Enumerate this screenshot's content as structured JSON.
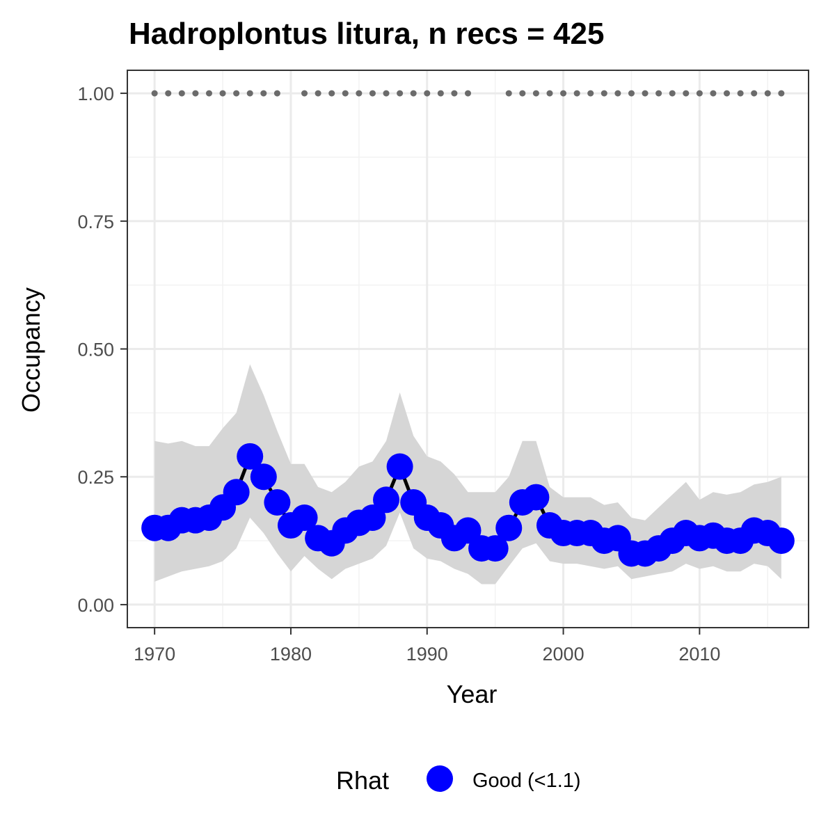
{
  "chart_data": {
    "type": "line",
    "title": "Hadroplontus litura, n recs = 425",
    "xlabel": "Year",
    "ylabel": "Occupancy",
    "xlim": [
      1968,
      2018
    ],
    "ylim": [
      -0.045,
      1.045
    ],
    "x_ticks": [
      1970,
      1980,
      1990,
      2000,
      2010
    ],
    "x_tick_labels": [
      "1970",
      "1980",
      "1990",
      "2000",
      "2010"
    ],
    "y_ticks": [
      0,
      0.25,
      0.5,
      0.75,
      1.0
    ],
    "y_tick_labels": [
      "0.00",
      "0.25",
      "0.50",
      "0.75",
      "1.00"
    ],
    "grid": true,
    "legend": {
      "title": "Rhat",
      "position": "bottom",
      "entries": [
        {
          "label": "Good (<1.1)",
          "color": "#0000ff"
        }
      ]
    },
    "colors": {
      "points": "#0000ff",
      "line": "#000000",
      "ribbon": "#d6d6d6",
      "record_dots": "#6b6b6b"
    },
    "series": [
      {
        "type": "line",
        "x": [
          1970,
          1971,
          1972,
          1973,
          1974,
          1975,
          1976,
          1977,
          1978,
          1979,
          1980,
          1981,
          1982,
          1983,
          1984,
          1985,
          1986,
          1987,
          1988,
          1989,
          1990,
          1991,
          1992,
          1993,
          1994,
          1995,
          1996,
          1997,
          1998,
          1999,
          2000,
          2001,
          2002,
          2003,
          2004,
          2005,
          2006,
          2007,
          2008,
          2009,
          2010,
          2011,
          2012,
          2013,
          2014,
          2015,
          2016
        ],
        "y": [
          0.15,
          0.15,
          0.165,
          0.165,
          0.17,
          0.19,
          0.22,
          0.29,
          0.25,
          0.2,
          0.155,
          0.17,
          0.13,
          0.12,
          0.145,
          0.16,
          0.17,
          0.205,
          0.27,
          0.2,
          0.17,
          0.155,
          0.13,
          0.145,
          0.11,
          0.11,
          0.15,
          0.2,
          0.21,
          0.155,
          0.14,
          0.14,
          0.14,
          0.125,
          0.13,
          0.1,
          0.1,
          0.11,
          0.125,
          0.14,
          0.13,
          0.135,
          0.125,
          0.125,
          0.145,
          0.14,
          0.125
        ],
        "lower": [
          0.045,
          0.055,
          0.065,
          0.07,
          0.075,
          0.085,
          0.11,
          0.17,
          0.14,
          0.1,
          0.065,
          0.095,
          0.07,
          0.05,
          0.07,
          0.08,
          0.09,
          0.115,
          0.18,
          0.11,
          0.09,
          0.085,
          0.07,
          0.06,
          0.04,
          0.04,
          0.075,
          0.11,
          0.12,
          0.085,
          0.08,
          0.08,
          0.075,
          0.07,
          0.075,
          0.05,
          0.055,
          0.06,
          0.065,
          0.08,
          0.07,
          0.075,
          0.065,
          0.065,
          0.08,
          0.075,
          0.05
        ],
        "upper": [
          0.32,
          0.315,
          0.32,
          0.31,
          0.31,
          0.345,
          0.375,
          0.47,
          0.41,
          0.34,
          0.275,
          0.275,
          0.23,
          0.22,
          0.24,
          0.27,
          0.28,
          0.32,
          0.415,
          0.33,
          0.29,
          0.28,
          0.255,
          0.22,
          0.22,
          0.22,
          0.25,
          0.32,
          0.32,
          0.23,
          0.21,
          0.21,
          0.21,
          0.195,
          0.2,
          0.17,
          0.165,
          0.19,
          0.215,
          0.24,
          0.205,
          0.22,
          0.215,
          0.22,
          0.235,
          0.24,
          0.25
        ]
      },
      {
        "type": "record_years",
        "y_value": 1.0,
        "x": [
          1970,
          1971,
          1972,
          1973,
          1974,
          1975,
          1976,
          1977,
          1978,
          1979,
          1981,
          1982,
          1983,
          1984,
          1985,
          1986,
          1987,
          1988,
          1989,
          1990,
          1991,
          1992,
          1993,
          1996,
          1997,
          1998,
          1999,
          2000,
          2001,
          2002,
          2003,
          2004,
          2005,
          2006,
          2007,
          2008,
          2009,
          2010,
          2011,
          2012,
          2013,
          2014,
          2015,
          2016
        ]
      }
    ]
  }
}
